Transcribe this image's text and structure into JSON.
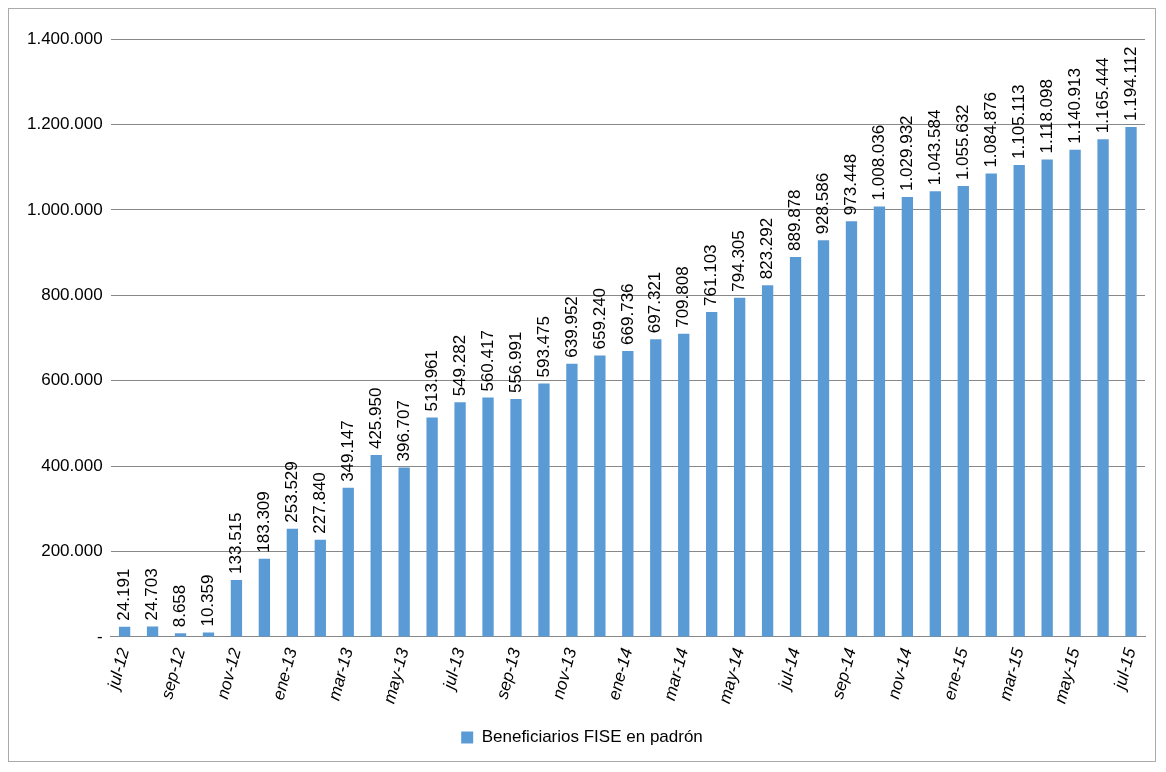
{
  "chart_data": {
    "type": "bar",
    "categories": [
      "jul-12",
      null,
      "sep-12",
      null,
      "nov-12",
      null,
      "ene-13",
      null,
      "mar-13",
      null,
      "may-13",
      null,
      "jul-13",
      null,
      "sep-13",
      null,
      "nov-13",
      null,
      "ene-14",
      null,
      "mar-14",
      null,
      "may-14",
      null,
      "jul-14",
      null,
      "sep-14",
      null,
      "nov-14",
      null,
      "ene-15",
      null,
      "mar-15",
      null,
      "may-15",
      null,
      "jul-15"
    ],
    "series": [
      {
        "name": "Beneficiarios FISE en padrón",
        "color": "#5b9bd5",
        "values": [
          24191,
          24703,
          8658,
          10359,
          133515,
          183309,
          253529,
          227840,
          349147,
          425950,
          396707,
          513961,
          549282,
          560417,
          556991,
          593475,
          639952,
          659240,
          669736,
          697321,
          709808,
          761103,
          794305,
          823292,
          889878,
          928586,
          973448,
          1008036,
          1029932,
          1043584,
          1055632,
          1084876,
          1105113,
          1118098,
          1140913,
          1165444,
          1194112
        ],
        "value_labels": [
          "24.191",
          "24.703",
          "8.658",
          "10.359",
          "133.515",
          "183.309",
          "253.529",
          "227.840",
          "349.147",
          "425.950",
          "396.707",
          "513.961",
          "549.282",
          "560.417",
          "556.991",
          "593.475",
          "639.952",
          "659.240",
          "669.736",
          "697.321",
          "709.808",
          "761.103",
          "794.305",
          "823.292",
          "889.878",
          "928.586",
          "973.448",
          "1.008.036",
          "1.029.932",
          "1.043.584",
          "1.055.632",
          "1.084.876",
          "1.105.113",
          "1.118.098",
          "1.140.913",
          "1.165.444",
          "1.194.112"
        ]
      }
    ],
    "ylim": [
      0,
      1400000
    ],
    "yticks": [
      {
        "value": 0,
        "label": "-"
      },
      {
        "value": 200000,
        "label": "200.000"
      },
      {
        "value": 400000,
        "label": "400.000"
      },
      {
        "value": 600000,
        "label": "600.000"
      },
      {
        "value": 800000,
        "label": "800.000"
      },
      {
        "value": 1000000,
        "label": "1.000.000"
      },
      {
        "value": 1200000,
        "label": "1.200.000"
      },
      {
        "value": 1400000,
        "label": "1.400.000"
      }
    ],
    "grid": "y",
    "legend": "bottom"
  }
}
